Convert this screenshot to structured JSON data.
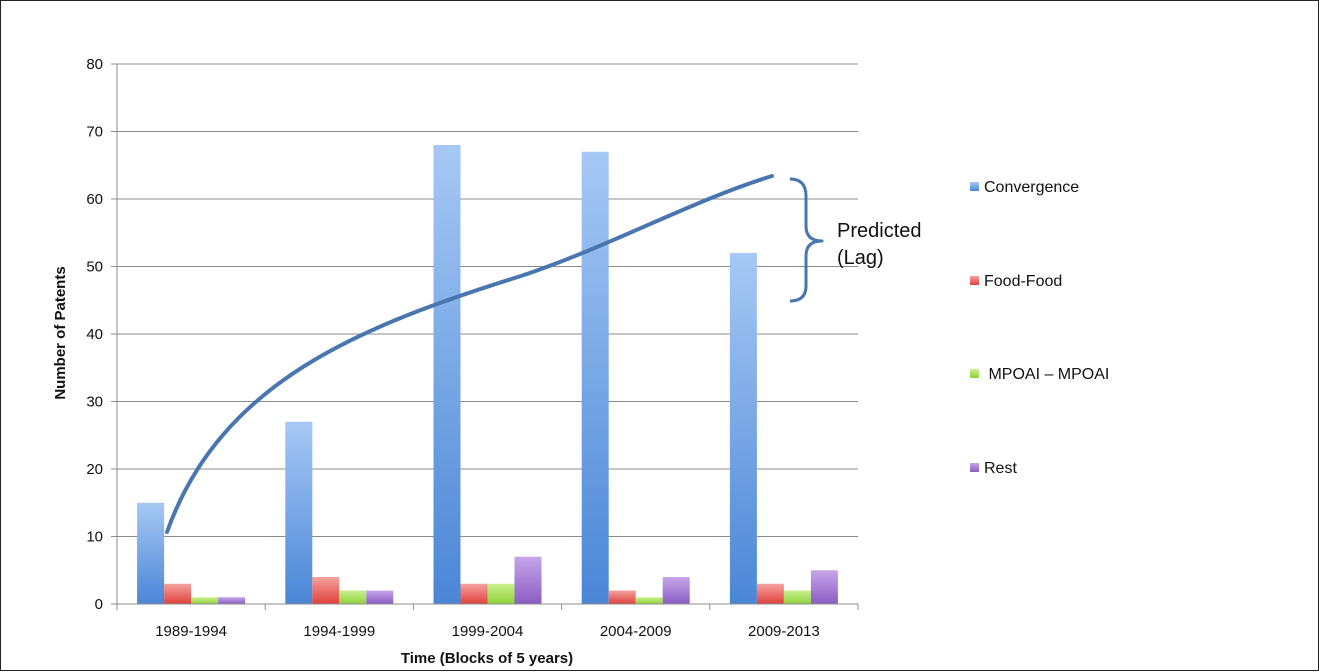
{
  "chart_data": {
    "type": "bar",
    "xlabel": "Time (Blocks of 5 years)",
    "ylabel": "Number of Patents",
    "ylim": [
      0,
      80
    ],
    "yticks": [
      0,
      10,
      20,
      30,
      40,
      50,
      60,
      70,
      80
    ],
    "grid": true,
    "legend_position": "right",
    "categories": [
      "1989-1994",
      "1994-1999",
      "1999-2004",
      "2004-2009",
      "2009-2013"
    ],
    "series": [
      {
        "name": "Convergence",
        "values": [
          15,
          27,
          68,
          67,
          52
        ],
        "color": "#4a86d6",
        "color_light": "#a6c8f5"
      },
      {
        "name": "Food-Food",
        "values": [
          3,
          4,
          3,
          2,
          3
        ],
        "color": "#e0403c",
        "color_light": "#f4a3a0"
      },
      {
        "name": " MPOAI – MPOAI",
        "values": [
          1,
          2,
          3,
          1,
          2
        ],
        "color": "#8fd13c",
        "color_light": "#c9f08e"
      },
      {
        "name": "Rest",
        "values": [
          1,
          2,
          7,
          4,
          5
        ],
        "color": "#8a5cc4",
        "color_light": "#c6a6ea"
      }
    ],
    "annotation": {
      "lines": [
        "Predicted",
        "(Lag)"
      ],
      "trend_color": "#4a76b0"
    }
  }
}
